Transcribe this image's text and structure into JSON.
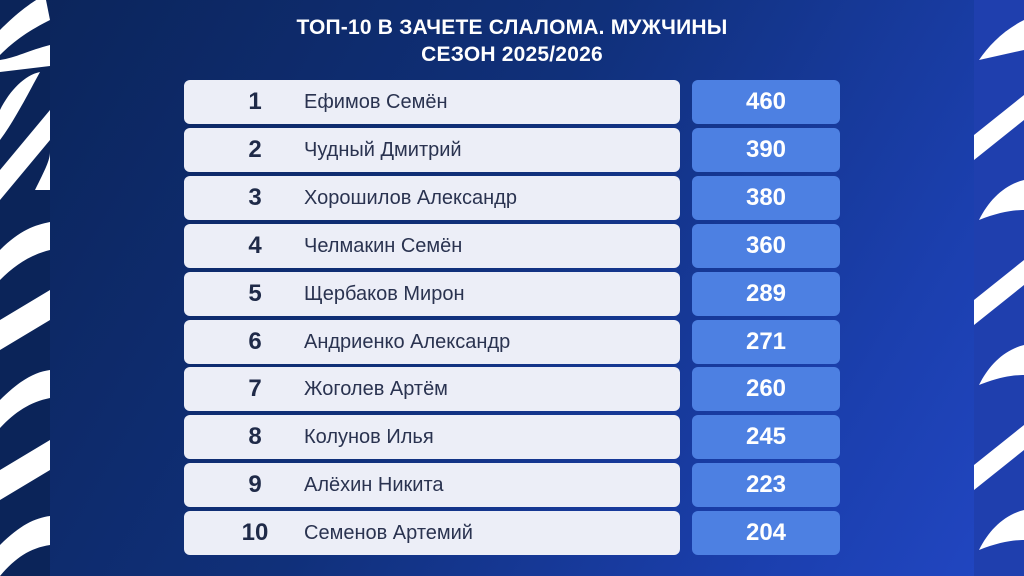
{
  "title": {
    "line1": "ТОП-10 В ЗАЧЕТЕ СЛАЛОМА. МУЖЧИНЫ",
    "line2": "СЕЗОН 2025/2026"
  },
  "colors": {
    "name_box": "#eceef7",
    "score_box": "#4d80e2",
    "background": "#10307a"
  },
  "rows": [
    {
      "rank": "1",
      "name": "Ефимов Семён",
      "points": "460"
    },
    {
      "rank": "2",
      "name": "Чудный Дмитрий",
      "points": "390"
    },
    {
      "rank": "3",
      "name": "Хорошилов Александр",
      "points": "380"
    },
    {
      "rank": "4",
      "name": "Челмакин Семён",
      "points": "360"
    },
    {
      "rank": "5",
      "name": "Щербаков Мирон",
      "points": "289"
    },
    {
      "rank": "6",
      "name": "Андриенко Александр",
      "points": "271"
    },
    {
      "rank": "7",
      "name": "Жоголев Артём",
      "points": "260"
    },
    {
      "rank": "8",
      "name": "Колунов Илья",
      "points": "245"
    },
    {
      "rank": "9",
      "name": "Алёхин Никита",
      "points": "223"
    },
    {
      "rank": "10",
      "name": "Семенов Артемий",
      "points": "204"
    }
  ]
}
